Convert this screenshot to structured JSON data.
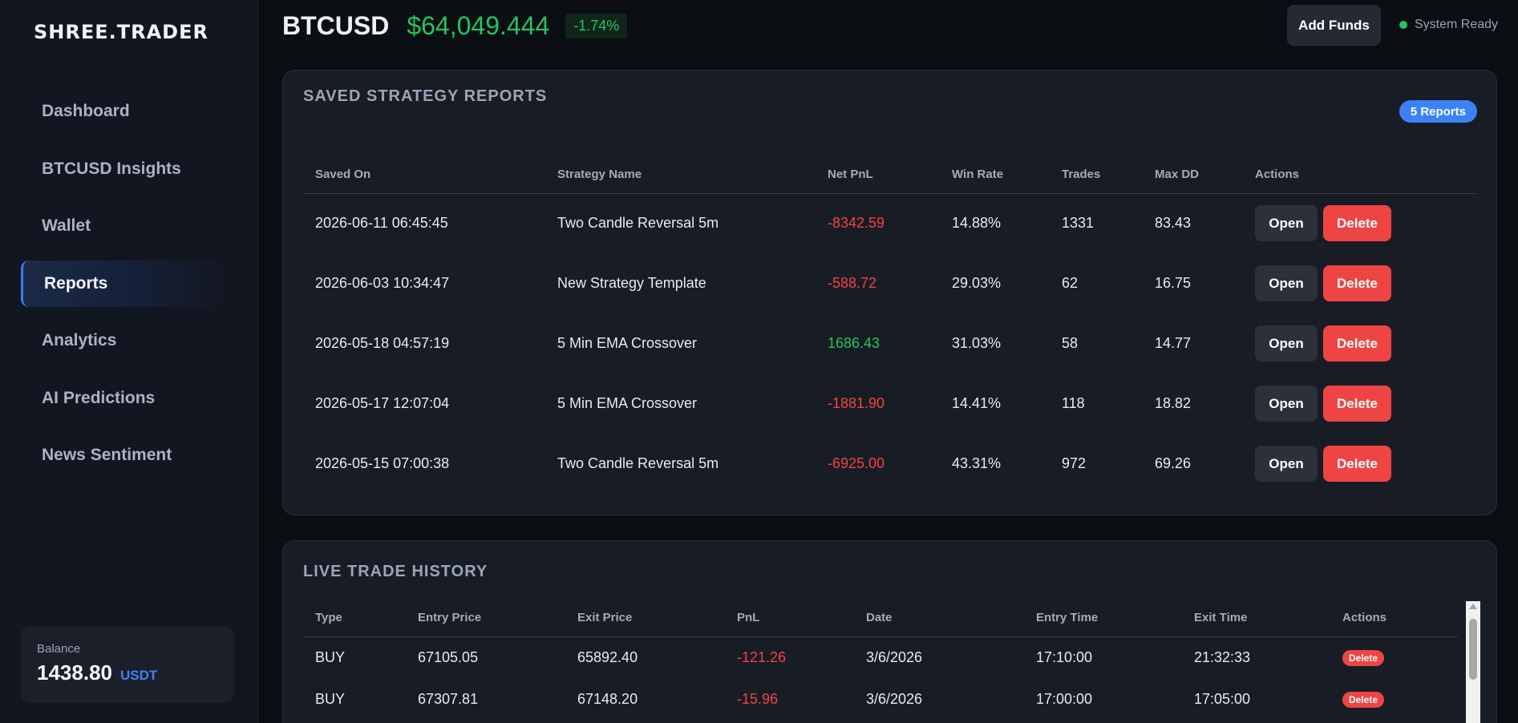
{
  "app": {
    "logo": "SHREE.TRADER"
  },
  "sidebar": {
    "items": [
      {
        "label": "Dashboard",
        "active": false
      },
      {
        "label": "BTCUSD Insights",
        "active": false
      },
      {
        "label": "Wallet",
        "active": false
      },
      {
        "label": "Reports",
        "active": true
      },
      {
        "label": "Analytics",
        "active": false
      },
      {
        "label": "AI Predictions",
        "active": false
      },
      {
        "label": "News Sentiment",
        "active": false
      }
    ],
    "balance": {
      "label": "Balance",
      "value": "1438.80",
      "unit": "USDT"
    }
  },
  "header": {
    "symbol": "BTCUSD",
    "price": "$64,049.444",
    "change": "-1.74%",
    "add_funds_label": "Add Funds",
    "status_text": "System Ready"
  },
  "reports": {
    "title": "SAVED STRATEGY REPORTS",
    "badge": "5 Reports",
    "columns": [
      "Saved On",
      "Strategy Name",
      "Net PnL",
      "Win Rate",
      "Trades",
      "Max DD",
      "Actions"
    ],
    "open_label": "Open",
    "delete_label": "Delete",
    "rows": [
      {
        "saved_on": "2026-06-11 06:45:45",
        "name": "Two Candle Reversal 5m",
        "pnl": "-8342.59",
        "pnl_sign": "neg",
        "win_rate": "14.88%",
        "trades": "1331",
        "max_dd": "83.43"
      },
      {
        "saved_on": "2026-06-03 10:34:47",
        "name": "New Strategy Template",
        "pnl": "-588.72",
        "pnl_sign": "neg",
        "win_rate": "29.03%",
        "trades": "62",
        "max_dd": "16.75"
      },
      {
        "saved_on": "2026-05-18 04:57:19",
        "name": "5 Min EMA Crossover",
        "pnl": "1686.43",
        "pnl_sign": "pos",
        "win_rate": "31.03%",
        "trades": "58",
        "max_dd": "14.77"
      },
      {
        "saved_on": "2026-05-17 12:07:04",
        "name": "5 Min EMA Crossover",
        "pnl": "-1881.90",
        "pnl_sign": "neg",
        "win_rate": "14.41%",
        "trades": "118",
        "max_dd": "18.82"
      },
      {
        "saved_on": "2026-05-15 07:00:38",
        "name": "Two Candle Reversal 5m",
        "pnl": "-6925.00",
        "pnl_sign": "neg",
        "win_rate": "43.31%",
        "trades": "972",
        "max_dd": "69.26"
      }
    ]
  },
  "live": {
    "title": "LIVE TRADE HISTORY",
    "columns": [
      "Type",
      "Entry Price",
      "Exit Price",
      "PnL",
      "Date",
      "Entry Time",
      "Exit Time",
      "Actions"
    ],
    "delete_label": "Delete",
    "rows": [
      {
        "type": "BUY",
        "entry": "67105.05",
        "exit": "65892.40",
        "pnl": "-121.26",
        "pnl_sign": "neg",
        "date": "3/6/2026",
        "entry_time": "17:10:00",
        "exit_time": "21:32:33"
      },
      {
        "type": "BUY",
        "entry": "67307.81",
        "exit": "67148.20",
        "pnl": "-15.96",
        "pnl_sign": "neg",
        "date": "3/6/2026",
        "entry_time": "17:00:00",
        "exit_time": "17:05:00"
      }
    ]
  },
  "colors": {
    "accent": "#3b82f6",
    "positive": "#22c55e",
    "negative": "#ef4444"
  }
}
